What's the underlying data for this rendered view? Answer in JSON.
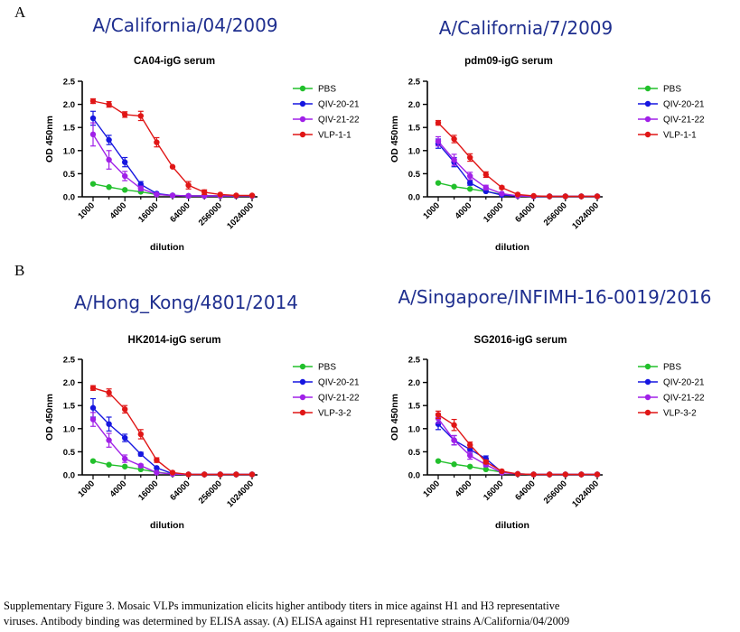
{
  "panel_labels": [
    "A",
    "B"
  ],
  "caption": {
    "line1": "Supplementary Figure 3. Mosaic VLPs immunization elicits higher antibody titers in mice against H1 and H3 representative",
    "line2": "viruses. Antibody binding was determined by ELISA assay. (A) ELISA against H1 representative strains A/California/04/2009"
  },
  "colors": {
    "PBS": "#22c02c",
    "QIV-20-21": "#1616e0",
    "QIV-21-22": "#a020e8",
    "VLP": "#e01616",
    "strain_title": "#1f2f8f"
  },
  "chart_data": [
    {
      "type": "line",
      "strain": "A/California/04/2009",
      "title": "CA04-igG serum",
      "xlabel": "dilution",
      "ylabel": "OD 450nm",
      "x_scale": "log4",
      "x": [
        1000,
        2000,
        4000,
        8000,
        16000,
        32000,
        64000,
        128000,
        256000,
        512000,
        1024000
      ],
      "x_ticks": [
        1000,
        4000,
        16000,
        64000,
        256000,
        1024000
      ],
      "ylim": [
        0,
        2.5
      ],
      "y_ticks": [
        0.0,
        0.5,
        1.0,
        1.5,
        2.0,
        2.5
      ],
      "legend": "right",
      "series": [
        {
          "name": "PBS",
          "values": [
            0.28,
            0.21,
            0.15,
            0.11,
            0.05,
            0.03,
            0.02,
            0.02,
            0.02,
            0.02,
            0.02
          ],
          "errors": [
            0,
            0,
            0,
            0,
            0,
            0,
            0,
            0,
            0,
            0,
            0
          ]
        },
        {
          "name": "QIV-20-21",
          "values": [
            1.7,
            1.23,
            0.75,
            0.27,
            0.07,
            0.03,
            0.02,
            0.02,
            0.02,
            0.02,
            0.02
          ],
          "errors": [
            0.15,
            0.1,
            0.1,
            0.06,
            0,
            0,
            0,
            0,
            0,
            0,
            0
          ]
        },
        {
          "name": "QIV-21-22",
          "values": [
            1.35,
            0.8,
            0.45,
            0.18,
            0.05,
            0.03,
            0.02,
            0.02,
            0.02,
            0.02,
            0.02
          ],
          "errors": [
            0.25,
            0.2,
            0.1,
            0.05,
            0,
            0,
            0,
            0,
            0,
            0,
            0
          ]
        },
        {
          "name": "VLP-1-1",
          "values": [
            2.07,
            2.0,
            1.78,
            1.75,
            1.18,
            0.65,
            0.25,
            0.1,
            0.05,
            0.03,
            0.03
          ],
          "errors": [
            0.05,
            0.06,
            0.06,
            0.1,
            0.1,
            0,
            0.08,
            0.05,
            0,
            0,
            0
          ]
        }
      ]
    },
    {
      "type": "line",
      "strain": "A/California/7/2009",
      "title": "pdm09-igG serum",
      "xlabel": "dilution",
      "ylabel": "OD 450nm",
      "x_scale": "log4",
      "x": [
        1000,
        2000,
        4000,
        8000,
        16000,
        32000,
        64000,
        128000,
        256000,
        512000,
        1024000
      ],
      "x_ticks": [
        1000,
        4000,
        16000,
        64000,
        256000,
        1024000
      ],
      "ylim": [
        0,
        2.5
      ],
      "y_ticks": [
        0.0,
        0.5,
        1.0,
        1.5,
        2.0,
        2.5
      ],
      "legend": "right",
      "series": [
        {
          "name": "PBS",
          "values": [
            0.3,
            0.22,
            0.17,
            0.12,
            0.05,
            0.02,
            0.01,
            0.01,
            0.01,
            0.01,
            0.01
          ],
          "errors": [
            0,
            0,
            0,
            0,
            0,
            0,
            0,
            0,
            0,
            0,
            0
          ]
        },
        {
          "name": "QIV-20-21",
          "values": [
            1.15,
            0.75,
            0.3,
            0.12,
            0.04,
            0.02,
            0.01,
            0.01,
            0.01,
            0.01,
            0.01
          ],
          "errors": [
            0.1,
            0.1,
            0.05,
            0,
            0,
            0,
            0,
            0,
            0,
            0,
            0
          ]
        },
        {
          "name": "QIV-21-22",
          "values": [
            1.2,
            0.8,
            0.45,
            0.2,
            0.07,
            0.02,
            0.01,
            0.01,
            0.01,
            0.01,
            0.01
          ],
          "errors": [
            0.1,
            0.12,
            0.08,
            0.05,
            0,
            0,
            0,
            0,
            0,
            0,
            0
          ]
        },
        {
          "name": "VLP-1-1",
          "values": [
            1.6,
            1.25,
            0.85,
            0.48,
            0.2,
            0.05,
            0.02,
            0.01,
            0.01,
            0.01,
            0.01
          ],
          "errors": [
            0.05,
            0.08,
            0.08,
            0.06,
            0.03,
            0,
            0,
            0,
            0,
            0,
            0
          ]
        }
      ]
    },
    {
      "type": "line",
      "strain": "A/Hong_Kong/4801/2014",
      "title": "HK2014-igG serum",
      "xlabel": "dilution",
      "ylabel": "OD 450nm",
      "x_scale": "log4",
      "x": [
        1000,
        2000,
        4000,
        8000,
        16000,
        32000,
        64000,
        128000,
        256000,
        512000,
        1024000
      ],
      "x_ticks": [
        1000,
        4000,
        16000,
        64000,
        256000,
        1024000
      ],
      "ylim": [
        0,
        2.5
      ],
      "y_ticks": [
        0.0,
        0.5,
        1.0,
        1.5,
        2.0,
        2.5
      ],
      "legend": "right",
      "series": [
        {
          "name": "PBS",
          "values": [
            0.3,
            0.22,
            0.18,
            0.12,
            0.06,
            0.02,
            0.01,
            0.01,
            0.01,
            0.01,
            0.01
          ],
          "errors": [
            0,
            0,
            0,
            0,
            0,
            0,
            0,
            0,
            0,
            0,
            0
          ]
        },
        {
          "name": "QIV-20-21",
          "values": [
            1.45,
            1.1,
            0.8,
            0.45,
            0.15,
            0.03,
            0.01,
            0.01,
            0.01,
            0.01,
            0.01
          ],
          "errors": [
            0.2,
            0.15,
            0.08,
            0.04,
            0,
            0,
            0,
            0,
            0,
            0,
            0
          ]
        },
        {
          "name": "QIV-21-22",
          "values": [
            1.2,
            0.75,
            0.35,
            0.2,
            0.05,
            0.02,
            0.01,
            0.01,
            0.01,
            0.01,
            0.01
          ],
          "errors": [
            0.15,
            0.15,
            0.08,
            0.03,
            0,
            0,
            0,
            0,
            0,
            0,
            0
          ]
        },
        {
          "name": "VLP-3-2",
          "values": [
            1.88,
            1.78,
            1.42,
            0.88,
            0.32,
            0.05,
            0.01,
            0.01,
            0.01,
            0.01,
            0.01
          ],
          "errors": [
            0.05,
            0.08,
            0.08,
            0.1,
            0.05,
            0,
            0,
            0,
            0,
            0,
            0
          ]
        }
      ]
    },
    {
      "type": "line",
      "strain": "A/Singapore/INFIMH-16-0019/2016",
      "title": "SG2016-igG serum",
      "xlabel": "dilution",
      "ylabel": "OD 450nm",
      "x_scale": "log4",
      "x": [
        1000,
        2000,
        4000,
        8000,
        16000,
        32000,
        64000,
        128000,
        256000,
        512000,
        1024000
      ],
      "x_ticks": [
        1000,
        4000,
        16000,
        64000,
        256000,
        1024000
      ],
      "ylim": [
        0,
        2.5
      ],
      "y_ticks": [
        0.0,
        0.5,
        1.0,
        1.5,
        2.0,
        2.5
      ],
      "legend": "right",
      "series": [
        {
          "name": "PBS",
          "values": [
            0.3,
            0.23,
            0.18,
            0.12,
            0.06,
            0.02,
            0.01,
            0.01,
            0.01,
            0.01,
            0.01
          ],
          "errors": [
            0,
            0,
            0,
            0,
            0,
            0,
            0,
            0,
            0,
            0,
            0
          ]
        },
        {
          "name": "QIV-20-21",
          "values": [
            1.1,
            0.75,
            0.55,
            0.35,
            0.06,
            0.02,
            0.01,
            0.01,
            0.01,
            0.01,
            0.01
          ],
          "errors": [
            0.12,
            0.1,
            0.08,
            0.06,
            0,
            0,
            0,
            0,
            0,
            0,
            0
          ]
        },
        {
          "name": "QIV-21-22",
          "values": [
            1.22,
            0.75,
            0.42,
            0.22,
            0.05,
            0.02,
            0.01,
            0.01,
            0.01,
            0.01,
            0.01
          ],
          "errors": [
            0.1,
            0.1,
            0.08,
            0.04,
            0,
            0,
            0,
            0,
            0,
            0,
            0
          ]
        },
        {
          "name": "VLP-3-2",
          "values": [
            1.3,
            1.08,
            0.65,
            0.28,
            0.08,
            0.02,
            0.01,
            0.01,
            0.01,
            0.01,
            0.01
          ],
          "errors": [
            0.08,
            0.12,
            0.06,
            0.04,
            0,
            0,
            0,
            0,
            0,
            0,
            0
          ]
        }
      ]
    }
  ]
}
